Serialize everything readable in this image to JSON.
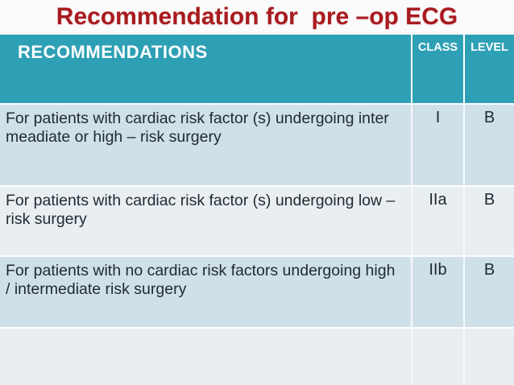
{
  "title": "Recommendation for  pre –op ECG",
  "table": {
    "headers": {
      "recommendations": "RECOMMENDATIONS",
      "class": "CLASS",
      "level": "LEVEL"
    },
    "rows": [
      {
        "text": "For patients with cardiac risk factor (s) undergoing inter meadiate or  high – risk surgery",
        "class": "I",
        "level": "B"
      },
      {
        "text": "For patients with cardiac risk factor (s) undergoing low – risk surgery",
        "class": "IIa",
        "level": "B"
      },
      {
        "text": "For patients with no cardiac risk factors undergoing high / intermediate risk surgery",
        "class": "IIb",
        "level": "B"
      },
      {
        "text": "",
        "class": "",
        "level": ""
      }
    ]
  },
  "colors": {
    "title_text": "#a81b1f",
    "header_bg": "#2ea0b5",
    "header_text": "#ffffff",
    "row_dark_bg": "#d0e0e8",
    "row_light_bg": "#e9eef2",
    "body_text": "#212b31",
    "separator": "#f6fafb",
    "page_bg": "#fbfbfb"
  }
}
